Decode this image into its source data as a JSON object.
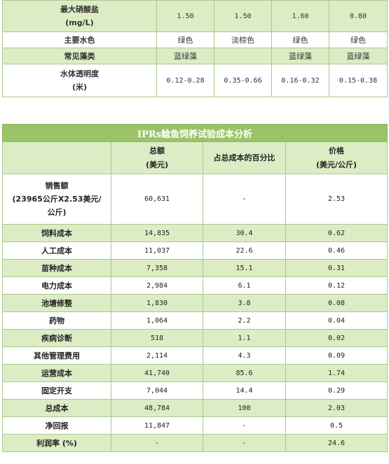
{
  "top_table": {
    "rows": [
      {
        "label_lines": [
          "最大硝酸盐",
          "(mg/L)"
        ],
        "values": [
          "1.50",
          "1.50",
          "1.60",
          "0.80"
        ]
      },
      {
        "label_lines": [
          "主要水色"
        ],
        "values": [
          "绿色",
          "淡棕色",
          "绿色",
          "绿色"
        ]
      },
      {
        "label_lines": [
          "常见藻类"
        ],
        "values": [
          "蓝绿藻",
          "",
          "蓝绿藻",
          "蓝绿藻"
        ]
      },
      {
        "label_lines": [
          "水体透明度",
          "(米)"
        ],
        "values": [
          "0.12-0.28",
          "0.35-0.66",
          "0.16-0.32",
          "0.15-0.38"
        ]
      }
    ]
  },
  "cost_table": {
    "title": "IPRs鲶鱼饲养试验成本分析",
    "headers": {
      "total_line1": "总额",
      "total_line2": "(美元)",
      "percent": "占总成本的百分比",
      "price_line1": "价格",
      "price_line2": "(美元/公斤)"
    },
    "rows": [
      {
        "label_lines": [
          "销售额",
          "(23965公斤X2.53美元/",
          "公斤)"
        ],
        "total": "60,631",
        "percent": "-",
        "price": "2.53"
      },
      {
        "label_lines": [
          "饲料成本"
        ],
        "total": "14,835",
        "percent": "30.4",
        "price": "0.62"
      },
      {
        "label_lines": [
          "人工成本"
        ],
        "total": "11,037",
        "percent": "22.6",
        "price": "0.46"
      },
      {
        "label_lines": [
          "苗种成本"
        ],
        "total": "7,358",
        "percent": "15.1",
        "price": "0.31"
      },
      {
        "label_lines": [
          "电力成本"
        ],
        "total": "2,984",
        "percent": "6.1",
        "price": "0.12"
      },
      {
        "label_lines": [
          "池塘修整"
        ],
        "total": "1,830",
        "percent": "3.8",
        "price": "0.08"
      },
      {
        "label_lines": [
          "药物"
        ],
        "total": "1,064",
        "percent": "2.2",
        "price": "0.04"
      },
      {
        "label_lines": [
          "疾病诊断"
        ],
        "total": "518",
        "percent": "1.1",
        "price": "0.02"
      },
      {
        "label_lines": [
          "其他管理费用"
        ],
        "total": "2,114",
        "percent": "4.3",
        "price": "0.09"
      },
      {
        "label_lines": [
          "运营成本"
        ],
        "total": "41,740",
        "percent": "85.6",
        "price": "1.74"
      },
      {
        "label_lines": [
          "固定开支"
        ],
        "total": "7,044",
        "percent": "14.4",
        "price": "0.29"
      },
      {
        "label_lines": [
          "总成本"
        ],
        "total": "48,784",
        "percent": "100",
        "price": "2.03"
      },
      {
        "label_lines": [
          "净回报"
        ],
        "total": "11,847",
        "percent": "-",
        "price": "0.5"
      },
      {
        "label_lines": [
          "利润率 (%)"
        ],
        "total": "-",
        "percent": "-",
        "price": "24.6"
      }
    ]
  }
}
